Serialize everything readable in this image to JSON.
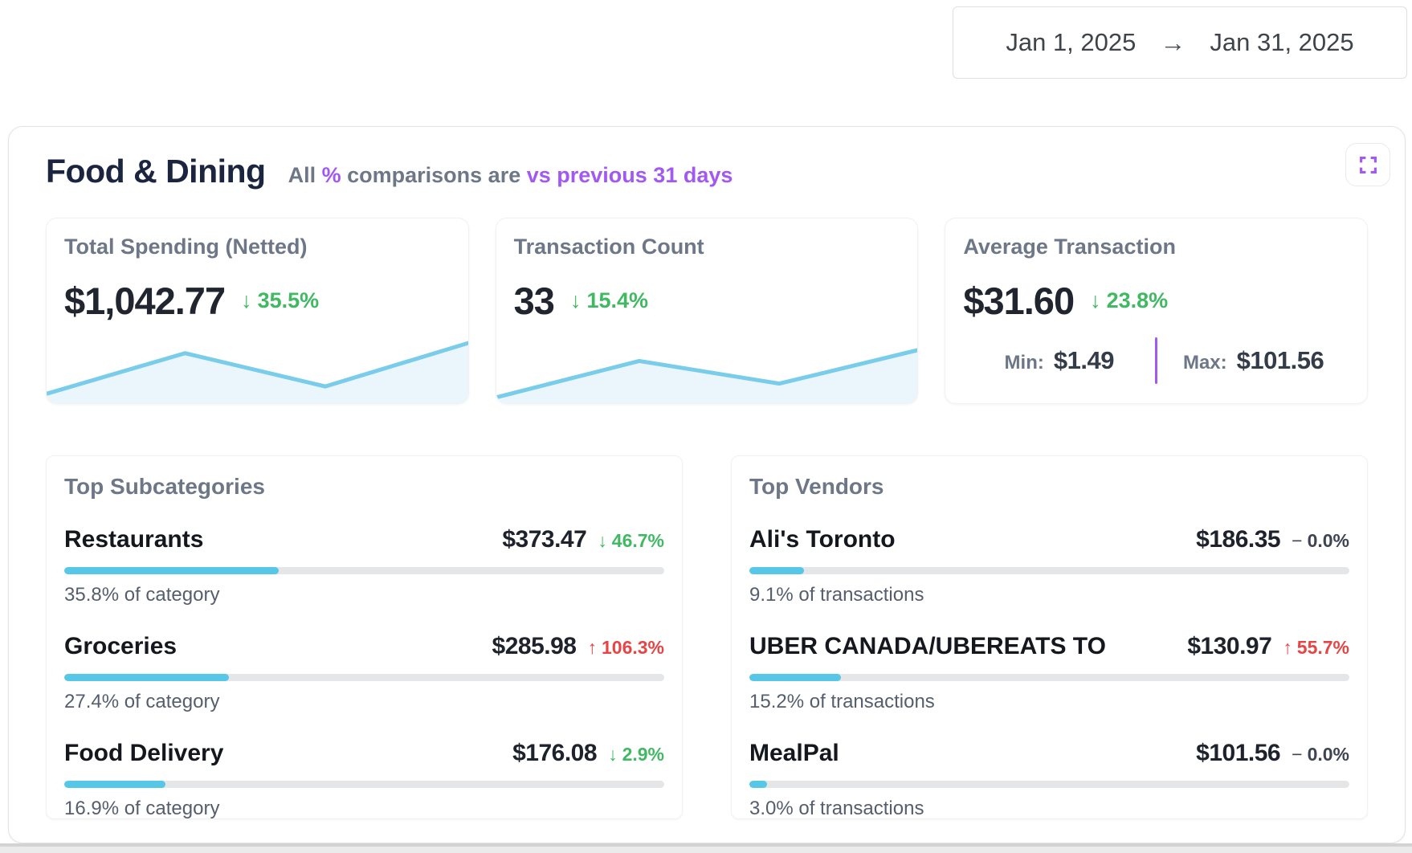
{
  "date_range": {
    "start": "Jan 1, 2025",
    "arrow": "→",
    "end": "Jan 31, 2025"
  },
  "header": {
    "title": "Food & Dining",
    "subtitle": {
      "prefix": "All ",
      "pct": "%",
      "middle": " comparisons are ",
      "highlight": "vs previous 31 days"
    }
  },
  "stats": [
    {
      "label": "Total Spending (Netted)",
      "value": "$1,042.77",
      "change": "35.5%",
      "direction": "down",
      "sparkline": [
        [
          0,
          0.85
        ],
        [
          0.33,
          0.27
        ],
        [
          0.66,
          0.74
        ],
        [
          1,
          0.12
        ]
      ]
    },
    {
      "label": "Transaction Count",
      "value": "33",
      "change": "15.4%",
      "direction": "down",
      "sparkline": [
        [
          0,
          0.9
        ],
        [
          0.34,
          0.38
        ],
        [
          0.67,
          0.7
        ],
        [
          1,
          0.22
        ]
      ]
    },
    {
      "label": "Average Transaction",
      "value": "$31.60",
      "change": "23.8%",
      "direction": "down",
      "min_label": "Min:",
      "min_value": "$1.49",
      "max_label": "Max:",
      "max_value": "$101.56"
    }
  ],
  "subcategories": {
    "title": "Top Subcategories",
    "items": [
      {
        "name": "Restaurants",
        "amount": "$373.47",
        "change": "46.7%",
        "direction": "down",
        "bar_pct": 35.8,
        "caption": "35.8% of category"
      },
      {
        "name": "Groceries",
        "amount": "$285.98",
        "change": "106.3%",
        "direction": "up",
        "bar_pct": 27.4,
        "caption": "27.4% of category"
      },
      {
        "name": "Food Delivery",
        "amount": "$176.08",
        "change": "2.9%",
        "direction": "down",
        "bar_pct": 16.9,
        "caption": "16.9% of category"
      }
    ]
  },
  "vendors": {
    "title": "Top Vendors",
    "items": [
      {
        "name": "Ali's Toronto",
        "amount": "$186.35",
        "change": "0.0%",
        "direction": "flat",
        "bar_pct": 9.1,
        "caption": "9.1% of transactions"
      },
      {
        "name": "UBER CANADA/UBEREATS TO",
        "amount": "$130.97",
        "change": "55.7%",
        "direction": "up",
        "bar_pct": 15.2,
        "caption": "15.2% of transactions"
      },
      {
        "name": "MealPal",
        "amount": "$101.56",
        "change": "0.0%",
        "direction": "flat",
        "bar_pct": 3.0,
        "caption": "3.0% of transactions"
      }
    ]
  },
  "colors": {
    "green": "#3fb962",
    "red": "#e64545",
    "flat": "#3e4452",
    "purple": "#a259f2",
    "navy": "#1c2540",
    "slate": "#6e7787",
    "spark_line": "#79cdea",
    "spark_fill": "#eaf6fc",
    "bar_fill": "#57c7e8",
    "bar_track": "#e4e6e8"
  }
}
